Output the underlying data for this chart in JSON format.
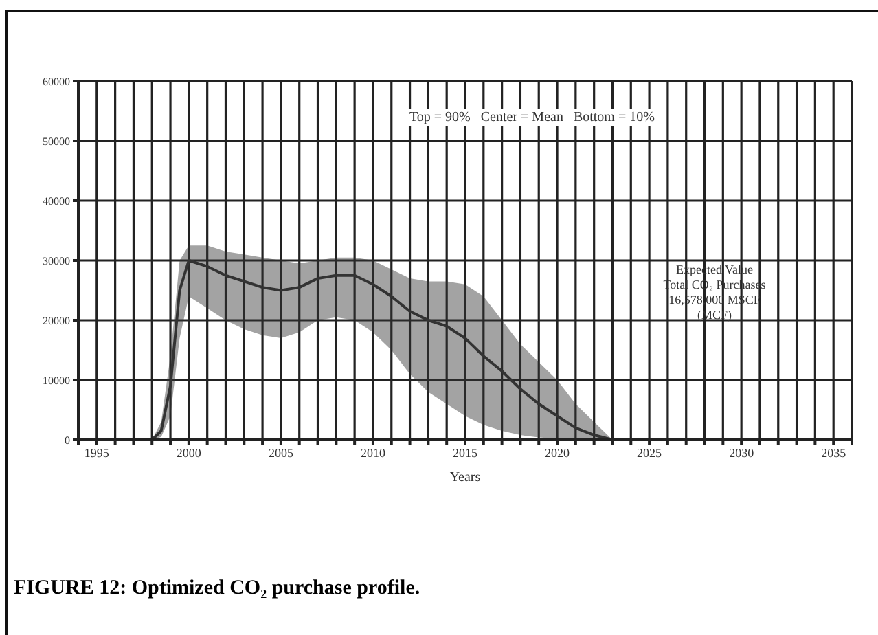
{
  "chart_data": {
    "type": "line",
    "title": "FIGURE 12: Optimized CO₂ purchase profile.",
    "xlabel": "Years",
    "annotations": [
      "Top = 90%   Center = Mean   Bottom = 10%",
      "Expected Value\nTotal CO₂ Purchases\n16,578,000 MSCF\n(MCF)"
    ],
    "x": [
      1998,
      1998.5,
      1999,
      1999.5,
      2000,
      2001,
      2002,
      2003,
      2004,
      2005,
      2006,
      2007,
      2008,
      2009,
      2010,
      2011,
      2012,
      2013,
      2014,
      2015,
      2016,
      2017,
      2018,
      2019,
      2020,
      2021,
      2022,
      2023
    ],
    "series": [
      {
        "color": "#333333",
        "values": [
          0,
          1500,
          9000,
          25000,
          30000,
          29000,
          27500,
          26500,
          25500,
          25000,
          25500,
          27000,
          27500,
          27500,
          26000,
          24000,
          21500,
          20000,
          19000,
          17000,
          14000,
          11500,
          8500,
          6000,
          4000,
          2000,
          800,
          0
        ],
        "lower": [
          0,
          500,
          4000,
          17000,
          24000,
          22000,
          20000,
          18500,
          17500,
          17000,
          18000,
          20000,
          20500,
          20000,
          18000,
          15000,
          11000,
          8000,
          6000,
          4000,
          2500,
          1500,
          800,
          400,
          200,
          100,
          0,
          0
        ],
        "upper": [
          0,
          3000,
          14000,
          30000,
          32500,
          32500,
          31500,
          31000,
          30500,
          30000,
          29500,
          30000,
          30500,
          30500,
          30000,
          28500,
          27000,
          26500,
          26500,
          26000,
          24000,
          20000,
          16000,
          13000,
          10000,
          6000,
          3000,
          0
        ]
      }
    ],
    "xlim": [
      1994,
      2036
    ],
    "xticks": [
      {
        "value": 1994,
        "label": null
      },
      {
        "value": 1995,
        "label": "1995"
      },
      {
        "value": 1996,
        "label": null
      },
      {
        "value": 1997,
        "label": null
      },
      {
        "value": 1998,
        "label": null
      },
      {
        "value": 1999,
        "label": null
      },
      {
        "value": 2000,
        "label": "2000"
      },
      {
        "value": 2001,
        "label": null
      },
      {
        "value": 2002,
        "label": null
      },
      {
        "value": 2003,
        "label": null
      },
      {
        "value": 2004,
        "label": null
      },
      {
        "value": 2005,
        "label": "2005"
      },
      {
        "value": 2006,
        "label": null
      },
      {
        "value": 2007,
        "label": null
      },
      {
        "value": 2008,
        "label": null
      },
      {
        "value": 2009,
        "label": null
      },
      {
        "value": 2010,
        "label": "2010"
      },
      {
        "value": 2011,
        "label": null
      },
      {
        "value": 2012,
        "label": null
      },
      {
        "value": 2013,
        "label": null
      },
      {
        "value": 2014,
        "label": null
      },
      {
        "value": 2015,
        "label": "2015"
      },
      {
        "value": 2016,
        "label": null
      },
      {
        "value": 2017,
        "label": null
      },
      {
        "value": 2018,
        "label": null
      },
      {
        "value": 2019,
        "label": null
      },
      {
        "value": 2020,
        "label": "2020"
      },
      {
        "value": 2021,
        "label": null
      },
      {
        "value": 2022,
        "label": null
      },
      {
        "value": 2023,
        "label": null
      },
      {
        "value": 2024,
        "label": null
      },
      {
        "value": 2025,
        "label": "2025"
      },
      {
        "value": 2026,
        "label": null
      },
      {
        "value": 2027,
        "label": null
      },
      {
        "value": 2028,
        "label": null
      },
      {
        "value": 2029,
        "label": null
      },
      {
        "value": 2030,
        "label": "2030"
      },
      {
        "value": 2031,
        "label": null
      },
      {
        "value": 2032,
        "label": null
      },
      {
        "value": 2033,
        "label": null
      },
      {
        "value": 2034,
        "label": null
      },
      {
        "value": 2035,
        "label": "2035"
      },
      {
        "value": 2036,
        "label": null
      }
    ],
    "ylim": [
      0,
      60000
    ],
    "yticks": [
      0,
      10000,
      20000,
      30000,
      40000,
      50000,
      60000
    ],
    "grid": true,
    "marker": "none",
    "line_style": "solid"
  }
}
